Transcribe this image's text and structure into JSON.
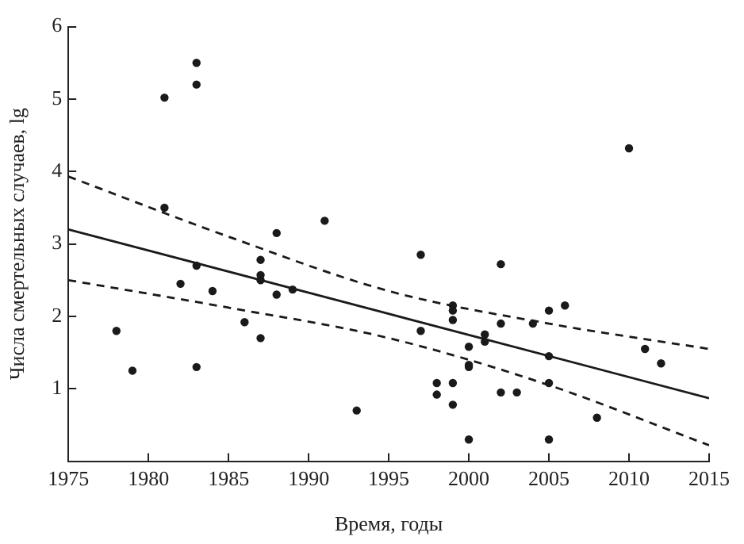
{
  "chart_data": {
    "type": "scatter",
    "xlabel": "Время, годы",
    "ylabel": "Числа смертельных случаев, lg",
    "xlim": [
      1975,
      2015
    ],
    "xticks": [
      1975,
      1980,
      1985,
      1990,
      1995,
      2000,
      2005,
      2010,
      2015
    ],
    "ylim": [
      0,
      6
    ],
    "yticks": [
      1,
      2,
      3,
      4,
      5,
      6
    ],
    "grid": false,
    "legend": false,
    "series": [
      {
        "color": "#1a1a1a",
        "marker": "circle",
        "x": [
          1978,
          1979,
          1981,
          1981,
          1982,
          1983,
          1983,
          1983,
          1983,
          1984,
          1986,
          1987,
          1987,
          1987,
          1987,
          1988,
          1988,
          1989,
          1991,
          1993,
          1997,
          1997,
          1998,
          1998,
          1999,
          1999,
          1999,
          1999,
          1999,
          2000,
          2000,
          2000,
          2000,
          2001,
          2001,
          2002,
          2002,
          2002,
          2003,
          2004,
          2005,
          2005,
          2005,
          2005,
          2006,
          2008,
          2010,
          2011,
          2012
        ],
        "values": [
          1.8,
          1.25,
          5.02,
          3.5,
          2.45,
          5.5,
          5.2,
          2.7,
          1.3,
          2.35,
          1.92,
          2.78,
          2.57,
          2.5,
          1.7,
          3.15,
          2.3,
          2.37,
          3.32,
          0.7,
          2.85,
          1.8,
          1.08,
          0.92,
          2.15,
          2.08,
          1.95,
          1.08,
          0.78,
          1.58,
          1.33,
          1.3,
          0.3,
          1.75,
          1.65,
          2.72,
          1.9,
          0.95,
          0.95,
          1.9,
          2.08,
          1.45,
          1.08,
          0.3,
          2.15,
          0.6,
          4.32,
          1.55,
          1.35
        ]
      },
      {
        "type": "line",
        "color": "#1a1a1a",
        "line_style": "solid",
        "marker": "none",
        "x": [
          1975,
          2015
        ],
        "values": [
          3.2,
          0.87
        ]
      },
      {
        "type": "line",
        "color": "#1a1a1a",
        "line_style": "dashed",
        "marker": "none",
        "x": [
          1975,
          1985,
          1995,
          2005,
          2015
        ],
        "values": [
          3.93,
          3.1,
          2.35,
          1.9,
          1.55
        ]
      },
      {
        "type": "line",
        "color": "#1a1a1a",
        "line_style": "dashed",
        "marker": "none",
        "x": [
          1975,
          1985,
          1995,
          2005,
          2015
        ],
        "values": [
          2.5,
          2.12,
          1.7,
          1.05,
          0.22
        ]
      }
    ]
  }
}
